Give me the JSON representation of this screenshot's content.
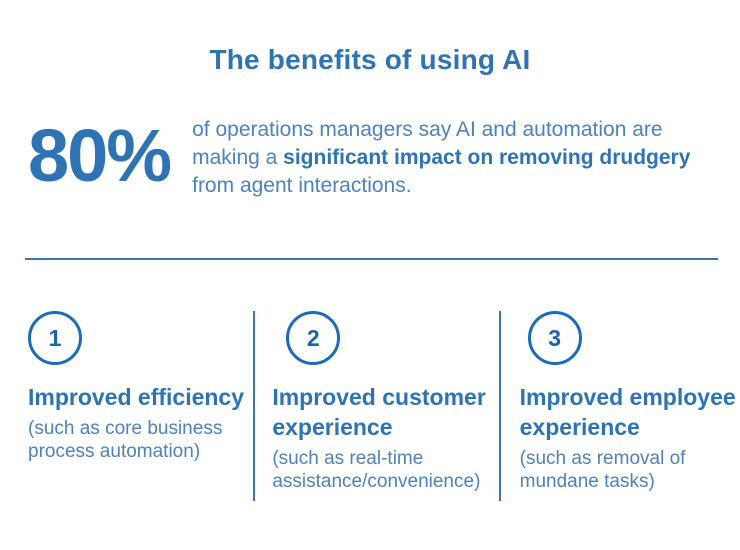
{
  "page": {
    "title": "The benefits of using AI"
  },
  "stat": {
    "value": "80%",
    "text_before": "of operations managers say AI and automation are making a ",
    "text_bold": "significant impact on removing drudgery",
    "text_after": " from agent interactions."
  },
  "benefits": [
    {
      "number": "1",
      "title": "Improved efficiency",
      "subtitle": "(such as core business process automation)"
    },
    {
      "number": "2",
      "title": "Improved customer experience",
      "subtitle": "(such as real-time assistance/convenience)"
    },
    {
      "number": "3",
      "title": "Improved employee experience",
      "subtitle": "(such as removal of mundane tasks)"
    }
  ],
  "colors": {
    "primary_blue": "#2e74b5",
    "light_blue": "#4d82be",
    "divider_blue": "#3e74ab",
    "circle_blue": "#1b6cb8"
  }
}
